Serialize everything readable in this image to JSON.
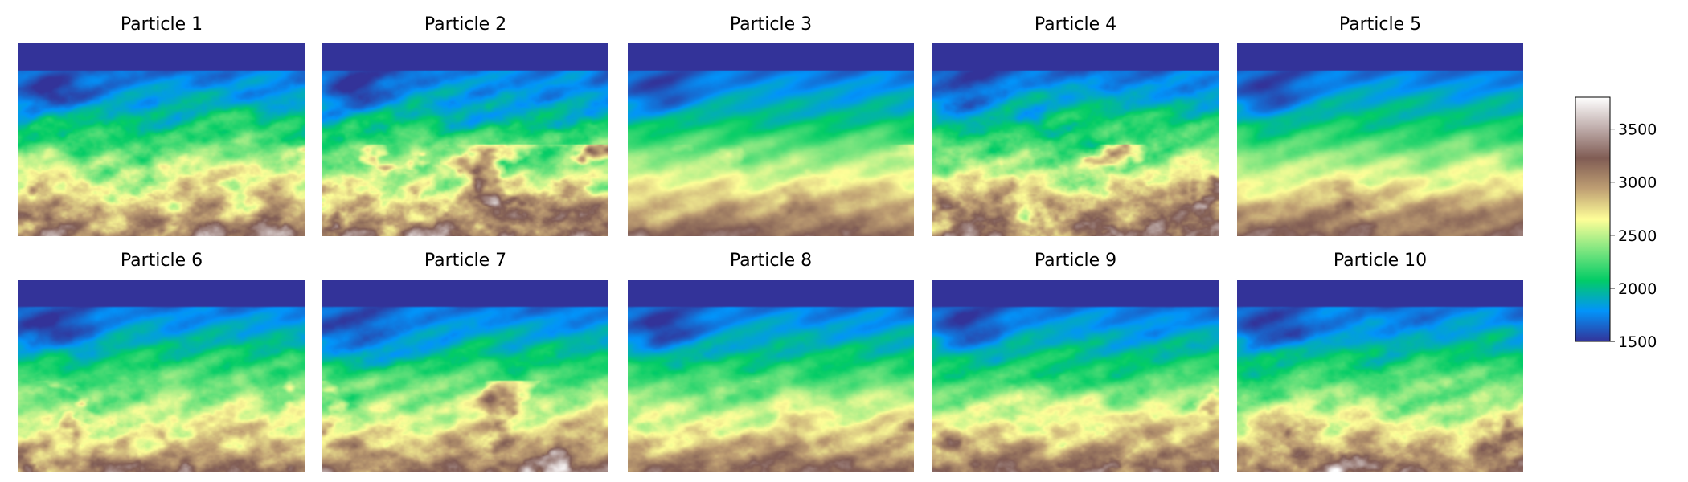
{
  "chart_data": {
    "type": "heatmap",
    "description_free": true,
    "title": "",
    "xlabel": "",
    "ylabel": "",
    "panels": [
      {
        "title": "Particle 1",
        "row": 1,
        "col": 1,
        "seed": 11,
        "roughness": 0.95
      },
      {
        "title": "Particle 2",
        "row": 1,
        "col": 2,
        "seed": 23,
        "roughness": 1.0
      },
      {
        "title": "Particle 3",
        "row": 1,
        "col": 3,
        "seed": 37,
        "roughness": 0.35
      },
      {
        "title": "Particle 4",
        "row": 1,
        "col": 4,
        "seed": 41,
        "roughness": 1.0
      },
      {
        "title": "Particle 5",
        "row": 1,
        "col": 5,
        "seed": 53,
        "roughness": 0.4
      },
      {
        "title": "Particle 6",
        "row": 2,
        "col": 1,
        "seed": 67,
        "roughness": 0.8
      },
      {
        "title": "Particle 7",
        "row": 2,
        "col": 2,
        "seed": 71,
        "roughness": 0.75
      },
      {
        "title": "Particle 8",
        "row": 2,
        "col": 3,
        "seed": 83,
        "roughness": 0.6
      },
      {
        "title": "Particle 9",
        "row": 2,
        "col": 4,
        "seed": 97,
        "roughness": 0.7
      },
      {
        "title": "Particle 10",
        "row": 2,
        "col": 5,
        "seed": 101,
        "roughness": 0.8
      }
    ],
    "colorbar": {
      "min": 1500,
      "max": 3800,
      "ticks": [
        1500,
        2000,
        2500,
        3000,
        3500
      ],
      "colormap": "terrain",
      "colors": [
        "#333399",
        "#0294fa",
        "#02cc66",
        "#7fe680",
        "#fefe98",
        "#bf9f73",
        "#805c54",
        "#c0aeac",
        "#ffffff"
      ]
    },
    "water_value": 1500
  }
}
